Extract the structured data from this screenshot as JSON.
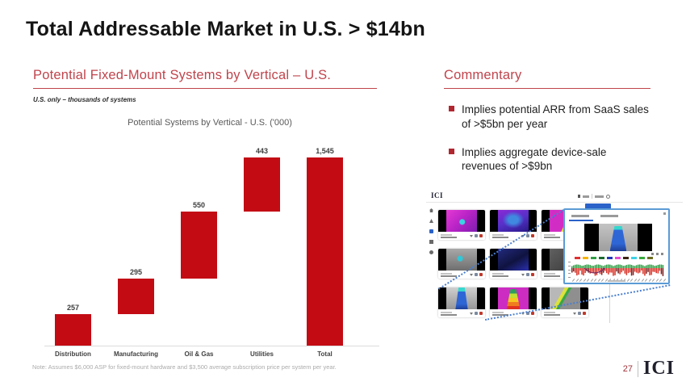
{
  "slide": {
    "title": "Total Addressable Market in U.S. > $14bn",
    "page_number": "27",
    "logo": "ICI"
  },
  "left_panel": {
    "heading": "Potential Fixed-Mount Systems by Vertical – U.S.",
    "subheading": "U.S. only – thousands of systems",
    "note": "Note: Assumes $6,000 ASP for fixed-mount hardware and $3,500 average subscription price per system per year."
  },
  "chart_data": {
    "type": "bar",
    "subtype": "waterfall",
    "title": "Potential Systems by Vertical - U.S. ('000)",
    "categories": [
      "Distribution",
      "Manufacturing",
      "Oil & Gas",
      "Utilities",
      "Total"
    ],
    "values": [
      257,
      295,
      550,
      443,
      1545
    ],
    "labels": [
      "257",
      "295",
      "550",
      "443",
      "1,545"
    ],
    "segment_types": [
      "increase",
      "increase",
      "increase",
      "increase",
      "total"
    ],
    "cumulative_ends": [
      257,
      552,
      1102,
      1545,
      1545
    ],
    "bar_color": "#c30b14",
    "xlabel": "",
    "ylabel": "",
    "ylim": [
      0,
      1545
    ],
    "grid": false,
    "legend": "none"
  },
  "commentary": {
    "heading": "Commentary",
    "bullets": [
      "Implies potential ARR from SaaS sales of >$5bn per year",
      "Implies aggregate device-sale revenues of >$9bn"
    ]
  },
  "product_screenshot": {
    "app_logo": "ICI",
    "tiles": [
      {
        "palette": "magenta"
      },
      {
        "palette": "violet-blue"
      },
      {
        "palette": "magenta-yellow"
      },
      {
        "palette": "gray-cyan"
      },
      {
        "palette": "navy"
      },
      {
        "palette": "dark-gray"
      },
      {
        "palette": "gray-conveyor"
      },
      {
        "palette": "magenta-rainbow"
      },
      {
        "palette": "gray-diagonal"
      }
    ],
    "popup": {
      "legend_colors": [
        "#e03131",
        "#f5b301",
        "#2f9e44",
        "#1b6b2f",
        "#2137b8",
        "#e64bd0",
        "#3d2414",
        "#3bd2e6",
        "#37a93c",
        "#6b6b1f"
      ]
    }
  },
  "colors": {
    "bar_red": "#c30b14",
    "heading_red": "#c0444c",
    "bullet_red": "#b02730",
    "popup_border_blue": "#5b9bd5",
    "callout_dot_blue": "#4a7fd0",
    "app_button_blue": "#2a62c9",
    "page_number_red": "#a0343c",
    "note_gray": "#ababab"
  }
}
